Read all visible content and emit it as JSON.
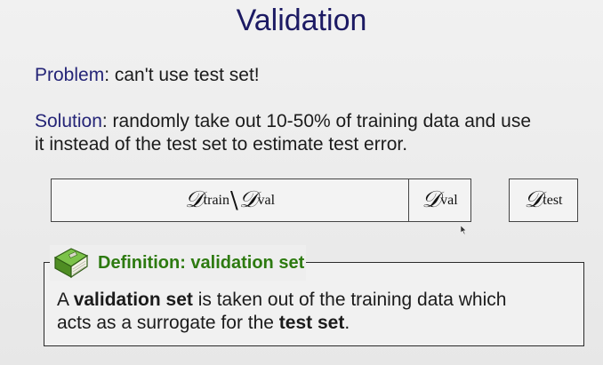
{
  "slide": {
    "title": "Validation"
  },
  "problem": {
    "label": "Problem",
    "text": ": can't use test set!"
  },
  "solution": {
    "label": "Solution",
    "text_line1": ": randomly take out 10-50% of training data and use",
    "text_line2": "it instead of the test set to estimate test error."
  },
  "split_boxes": {
    "train": {
      "symbol": "𝒟",
      "subscript": "train",
      "setminus": "\\",
      "symbol2": "𝒟",
      "subscript2": "val"
    },
    "val": {
      "symbol": "𝒟",
      "subscript": "val"
    },
    "test": {
      "symbol": "𝒟",
      "subscript": "test"
    }
  },
  "definition": {
    "icon": "book-icon",
    "title": "Definition: validation set",
    "body_line1_pre": "A ",
    "body_line1_bold": "validation set",
    "body_line1_post": " is taken out of the training data which",
    "body_line2_pre": "acts as a surrogate for the ",
    "body_line2_bold": "test set",
    "body_line2_post": "."
  },
  "colors": {
    "title": "#1c1a63",
    "keyword": "#252577",
    "definition_title": "#2d7a10",
    "book": "#5a9a2c"
  }
}
